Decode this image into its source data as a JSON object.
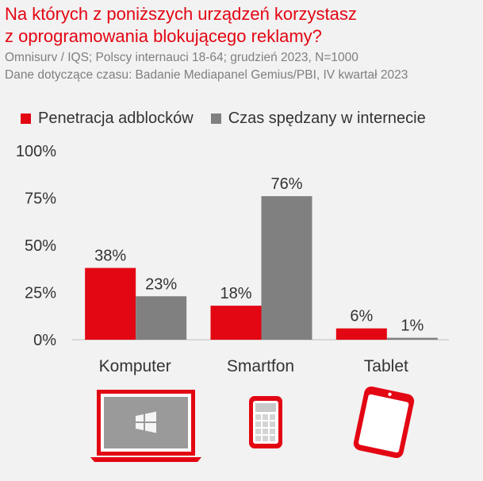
{
  "header": {
    "title_line1": "Na których z poniższych urządzeń korzystasz",
    "title_line2": "z oprogramowania blokującego reklamy?",
    "source_line1": "Omnisurv / IQS; Polscy internauci 18-64; grudzień 2023, N=1000",
    "source_line2": "Dane dotyczące czasu: Badanie Mediapanel Gemius/PBI, IV kwartał 2023"
  },
  "colors": {
    "adblock": "#e30613",
    "time": "#808080",
    "background": "#f2f2f2",
    "title": "#e30613"
  },
  "chart_data": {
    "type": "bar",
    "title": "Na których z poniższych urządzeń korzystasz z oprogramowania blokującego reklamy?",
    "categories": [
      "Komputer",
      "Smartfon",
      "Tablet"
    ],
    "series": [
      {
        "name": "Penetracja adblocków",
        "values": [
          38,
          18,
          6
        ],
        "labels": [
          "38%",
          "18%",
          "6%"
        ]
      },
      {
        "name": "Czas spędzany w internecie",
        "values": [
          23,
          76,
          1
        ],
        "labels": [
          "23%",
          "76%",
          "1%"
        ]
      }
    ],
    "yticks": [
      0,
      25,
      50,
      75,
      100
    ],
    "ytick_labels": [
      "0%",
      "25%",
      "50%",
      "75%",
      "100%"
    ],
    "ylim": [
      0,
      100
    ],
    "xlabel": "",
    "ylabel": "",
    "legend_position": "top",
    "grid": false
  },
  "devices": [
    {
      "name": "laptop-icon"
    },
    {
      "name": "smartphone-icon"
    },
    {
      "name": "tablet-icon"
    }
  ]
}
